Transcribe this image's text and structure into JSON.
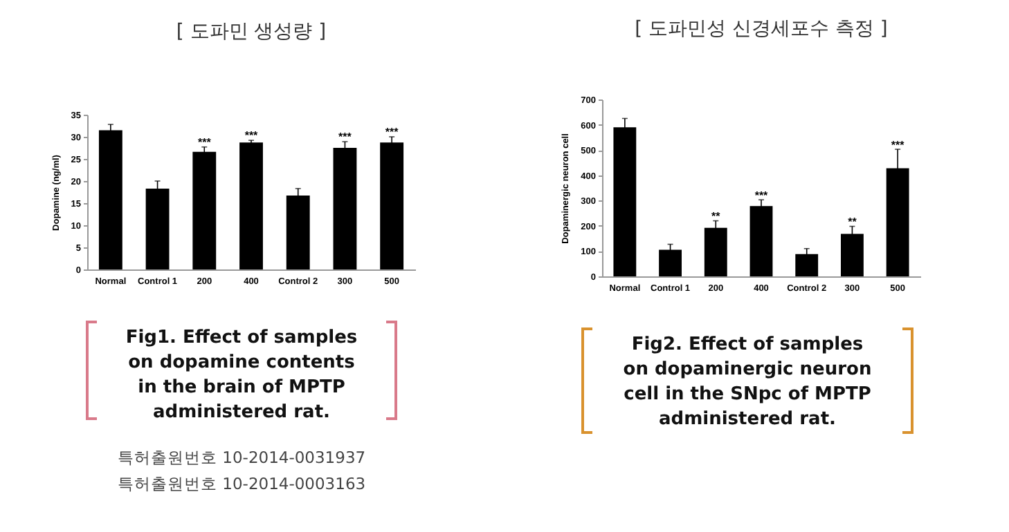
{
  "chart_data": [
    {
      "type": "bar",
      "title": "[ 도파민 생성량 ]",
      "ylabel": "Dopamine (ng/ml)",
      "categories": [
        "Normal",
        "Control 1",
        "200",
        "400",
        "Control 2",
        "300",
        "500"
      ],
      "series": [
        {
          "color": "#000000",
          "values": [
            31.5,
            18.3,
            26.6,
            28.7,
            16.7,
            27.5,
            28.7
          ],
          "errors": [
            1.3,
            1.7,
            1.1,
            0.5,
            1.6,
            1.4,
            1.3
          ]
        }
      ],
      "ylim": [
        0,
        35
      ],
      "yticks": [
        0,
        5,
        10,
        15,
        20,
        25,
        30,
        35
      ],
      "grid": false,
      "annotations": [
        {
          "text": "***",
          "x": "200",
          "y": 28.6
        },
        {
          "text": "***",
          "x": "400",
          "y": 30.1
        },
        {
          "text": "***",
          "x": "300",
          "y": 29.8
        },
        {
          "text": "***",
          "x": "500",
          "y": 30.9
        },
        "Fig1. Effect of samples on dopamine contents in the brain of MPTP administered rat.",
        "특허출원번호 10-2014-0031937",
        "특허출원번호 10-2014-0003163"
      ]
    },
    {
      "type": "bar",
      "title": "[ 도파민성 신경세포수 측정 ]",
      "ylabel": "Dopaminergic neuron cell",
      "categories": [
        "Normal",
        "Control 1",
        "200",
        "400",
        "Control 2",
        "300",
        "500"
      ],
      "series": [
        {
          "color": "#000000",
          "values": [
            590,
            105,
            192,
            278,
            88,
            168,
            428
          ],
          "errors": [
            35,
            22,
            28,
            25,
            22,
            30,
            75
          ]
        }
      ],
      "ylim": [
        0,
        700
      ],
      "yticks": [
        0,
        100,
        200,
        300,
        400,
        500,
        600,
        700
      ],
      "grid": false,
      "annotations": [
        {
          "text": "**",
          "x": "200",
          "y": 235
        },
        {
          "text": "***",
          "x": "400",
          "y": 318
        },
        {
          "text": "**",
          "x": "300",
          "y": 213
        },
        {
          "text": "***",
          "x": "500",
          "y": 518
        },
        "Fig2. Effect of samples on dopaminergic neuron cell in the SNpc of MPTP administered rat."
      ]
    }
  ]
}
